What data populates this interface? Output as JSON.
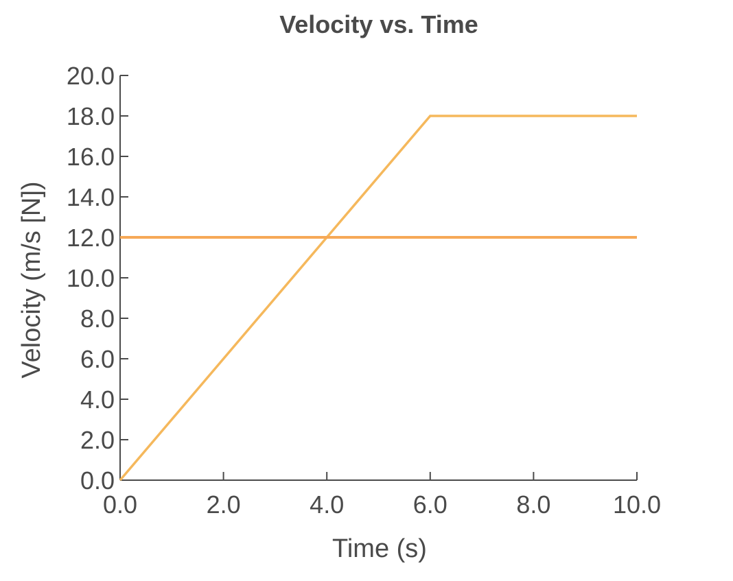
{
  "chart_data": {
    "type": "line",
    "title": "Velocity vs. Time",
    "xlabel": "Time (s)",
    "ylabel": "Velocity (m/s [N])",
    "xlim": [
      0,
      10
    ],
    "ylim": [
      0,
      20
    ],
    "x_ticks": [
      "0.0",
      "2.0",
      "4.0",
      "6.0",
      "8.0",
      "10.0"
    ],
    "y_ticks": [
      "0.0",
      "2.0",
      "4.0",
      "6.0",
      "8.0",
      "10.0",
      "12.0",
      "14.0",
      "16.0",
      "18.0",
      "20.0"
    ],
    "grid": false,
    "series": [
      {
        "color": "#f5b85c",
        "points": [
          [
            0,
            0
          ],
          [
            6,
            18
          ],
          [
            10,
            18
          ]
        ]
      },
      {
        "color": "#f6a957",
        "points": [
          [
            0,
            12
          ],
          [
            10,
            12
          ]
        ]
      }
    ]
  }
}
